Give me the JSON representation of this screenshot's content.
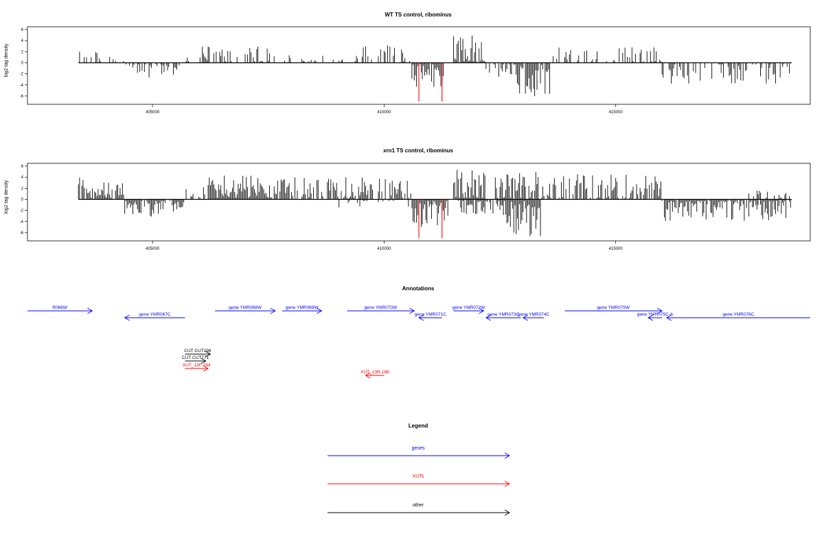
{
  "chart_data": [
    {
      "type": "bar",
      "title": "WT TS control, ribominus",
      "ylabel": "log2 tag density",
      "xlabel": "",
      "x_ticks": [
        405000,
        410000,
        415000
      ],
      "y_ticks": [
        6,
        4,
        2,
        0,
        -2,
        -4,
        -6
      ],
      "xlim": [
        402300,
        419200
      ],
      "ylim": [
        -7.5,
        6.5
      ],
      "grid": false,
      "colors": {
        "default": "#000000",
        "highlight": "#ff0000"
      },
      "highlight_bars": [
        {
          "x": 410750,
          "value": -7.0
        },
        {
          "x": 411250,
          "value": -7.0
        }
      ],
      "segments": [
        {
          "x_start": 403400,
          "x_end": 404400,
          "sign": 1,
          "max": 2.5,
          "density": 0.35
        },
        {
          "x_start": 404400,
          "x_end": 405600,
          "sign": -1,
          "max": 2.8,
          "density": 0.45
        },
        {
          "x_start": 405600,
          "x_end": 406000,
          "sign": 1,
          "max": 1.2,
          "density": 0.15
        },
        {
          "x_start": 406000,
          "x_end": 407600,
          "sign": 1,
          "max": 3.0,
          "density": 0.45
        },
        {
          "x_start": 407600,
          "x_end": 409000,
          "sign": 1,
          "max": 1.5,
          "density": 0.2
        },
        {
          "x_start": 409000,
          "x_end": 410600,
          "sign": 1,
          "max": 3.2,
          "density": 0.4
        },
        {
          "x_start": 410600,
          "x_end": 411300,
          "sign": -1,
          "max": 4.5,
          "density": 0.9
        },
        {
          "x_start": 411500,
          "x_end": 412200,
          "sign": 1,
          "max": 5.0,
          "density": 0.9
        },
        {
          "x_start": 412200,
          "x_end": 412800,
          "sign": -1,
          "max": 3.0,
          "density": 0.5
        },
        {
          "x_start": 412800,
          "x_end": 413600,
          "sign": -1,
          "max": 6.2,
          "density": 0.85
        },
        {
          "x_start": 413600,
          "x_end": 416000,
          "sign": 1,
          "max": 3.0,
          "density": 0.35
        },
        {
          "x_start": 416000,
          "x_end": 418800,
          "sign": -1,
          "max": 3.8,
          "density": 0.5
        },
        {
          "x_start": 418000,
          "x_end": 418400,
          "sign": 1,
          "max": 2.5,
          "density": 0.1
        }
      ]
    },
    {
      "type": "bar",
      "title": "xrn1 TS control, ribominus",
      "ylabel": "log2 tag density",
      "xlabel": "",
      "x_ticks": [
        405000,
        410000,
        415000
      ],
      "y_ticks": [
        6,
        4,
        2,
        0,
        -2,
        -4,
        -6
      ],
      "xlim": [
        402300,
        419200
      ],
      "ylim": [
        -7.5,
        6.5
      ],
      "grid": false,
      "colors": {
        "default": "#000000",
        "highlight": "#ff0000"
      },
      "highlight_bars": [
        {
          "x": 410750,
          "value": -7.0
        },
        {
          "x": 411250,
          "value": -7.0
        }
      ],
      "segments": [
        {
          "x_start": 403400,
          "x_end": 404400,
          "sign": 1,
          "max": 4.0,
          "density": 0.9
        },
        {
          "x_start": 404400,
          "x_end": 405700,
          "sign": -1,
          "max": 3.2,
          "density": 0.9
        },
        {
          "x_start": 405700,
          "x_end": 406200,
          "sign": 1,
          "max": 2.5,
          "density": 0.5
        },
        {
          "x_start": 406200,
          "x_end": 407600,
          "sign": 1,
          "max": 4.5,
          "density": 1.0
        },
        {
          "x_start": 407600,
          "x_end": 409000,
          "sign": 1,
          "max": 4.0,
          "density": 0.7
        },
        {
          "x_start": 409000,
          "x_end": 410600,
          "sign": 1,
          "max": 4.0,
          "density": 0.7
        },
        {
          "x_start": 409000,
          "x_end": 410600,
          "sign": -1,
          "max": 1.5,
          "density": 0.2
        },
        {
          "x_start": 410600,
          "x_end": 411400,
          "sign": -1,
          "max": 5.0,
          "density": 1.0
        },
        {
          "x_start": 411500,
          "x_end": 412200,
          "sign": 1,
          "max": 5.5,
          "density": 1.0
        },
        {
          "x_start": 411600,
          "x_end": 412600,
          "sign": -1,
          "max": 3.0,
          "density": 0.8
        },
        {
          "x_start": 412600,
          "x_end": 413400,
          "sign": -1,
          "max": 7.0,
          "density": 1.0
        },
        {
          "x_start": 412400,
          "x_end": 413400,
          "sign": 1,
          "max": 5.0,
          "density": 0.8
        },
        {
          "x_start": 413400,
          "x_end": 416000,
          "sign": 1,
          "max": 4.6,
          "density": 0.6
        },
        {
          "x_start": 416000,
          "x_end": 418800,
          "sign": -1,
          "max": 4.0,
          "density": 0.9
        },
        {
          "x_start": 417800,
          "x_end": 418800,
          "sign": 1,
          "max": 1.6,
          "density": 0.3
        }
      ]
    }
  ],
  "annotations": {
    "title": "Annotations",
    "genes": [
      {
        "label": "R066W",
        "start": 402300,
        "end": 403700,
        "strand": "+"
      },
      {
        "label": "gene YMR067C",
        "start": 404400,
        "end": 405700,
        "strand": "-"
      },
      {
        "label": "gene YMR068W",
        "start": 406350,
        "end": 407650,
        "strand": "+"
      },
      {
        "label": "gene YMR069W",
        "start": 407800,
        "end": 408650,
        "strand": "+"
      },
      {
        "label": "gene YMR070W",
        "start": 409200,
        "end": 410650,
        "strand": "+"
      },
      {
        "label": "gene YMR071C",
        "start": 410750,
        "end": 411250,
        "strand": "-"
      },
      {
        "label": "gene YMR072W",
        "start": 411500,
        "end": 412150,
        "strand": "+"
      },
      {
        "label": "gene YMR073C",
        "start": 412200,
        "end": 412950,
        "strand": "-"
      },
      {
        "label": "gene YMR074C",
        "start": 413000,
        "end": 413450,
        "strand": "-"
      },
      {
        "label": "gene YMR075W",
        "start": 413900,
        "end": 416000,
        "strand": "+"
      },
      {
        "label": "gene YMR075C-A",
        "start": 415700,
        "end": 416000,
        "strand": "-"
      },
      {
        "label": "gene YMR076C",
        "start": 416100,
        "end": 419200,
        "strand": "-"
      }
    ],
    "xuts": [
      {
        "label": "XUT_13F-184",
        "start": 405700,
        "end": 406200,
        "strand": "+"
      },
      {
        "label": "XUT_13R-188",
        "start": 409600,
        "end": 410000,
        "strand": "-"
      }
    ],
    "other": [
      {
        "label": "CUT CUT298",
        "start": 405700,
        "end": 406250,
        "strand": "+"
      },
      {
        "label": "CUT CUT771",
        "start": 405700,
        "end": 406150,
        "strand": "+"
      }
    ]
  },
  "legend": {
    "title": "Legend",
    "items": [
      {
        "label": "genes",
        "color": "#0000ff"
      },
      {
        "label": "XUTs",
        "color": "#ff0000"
      },
      {
        "label": "other",
        "color": "#000000"
      }
    ]
  }
}
